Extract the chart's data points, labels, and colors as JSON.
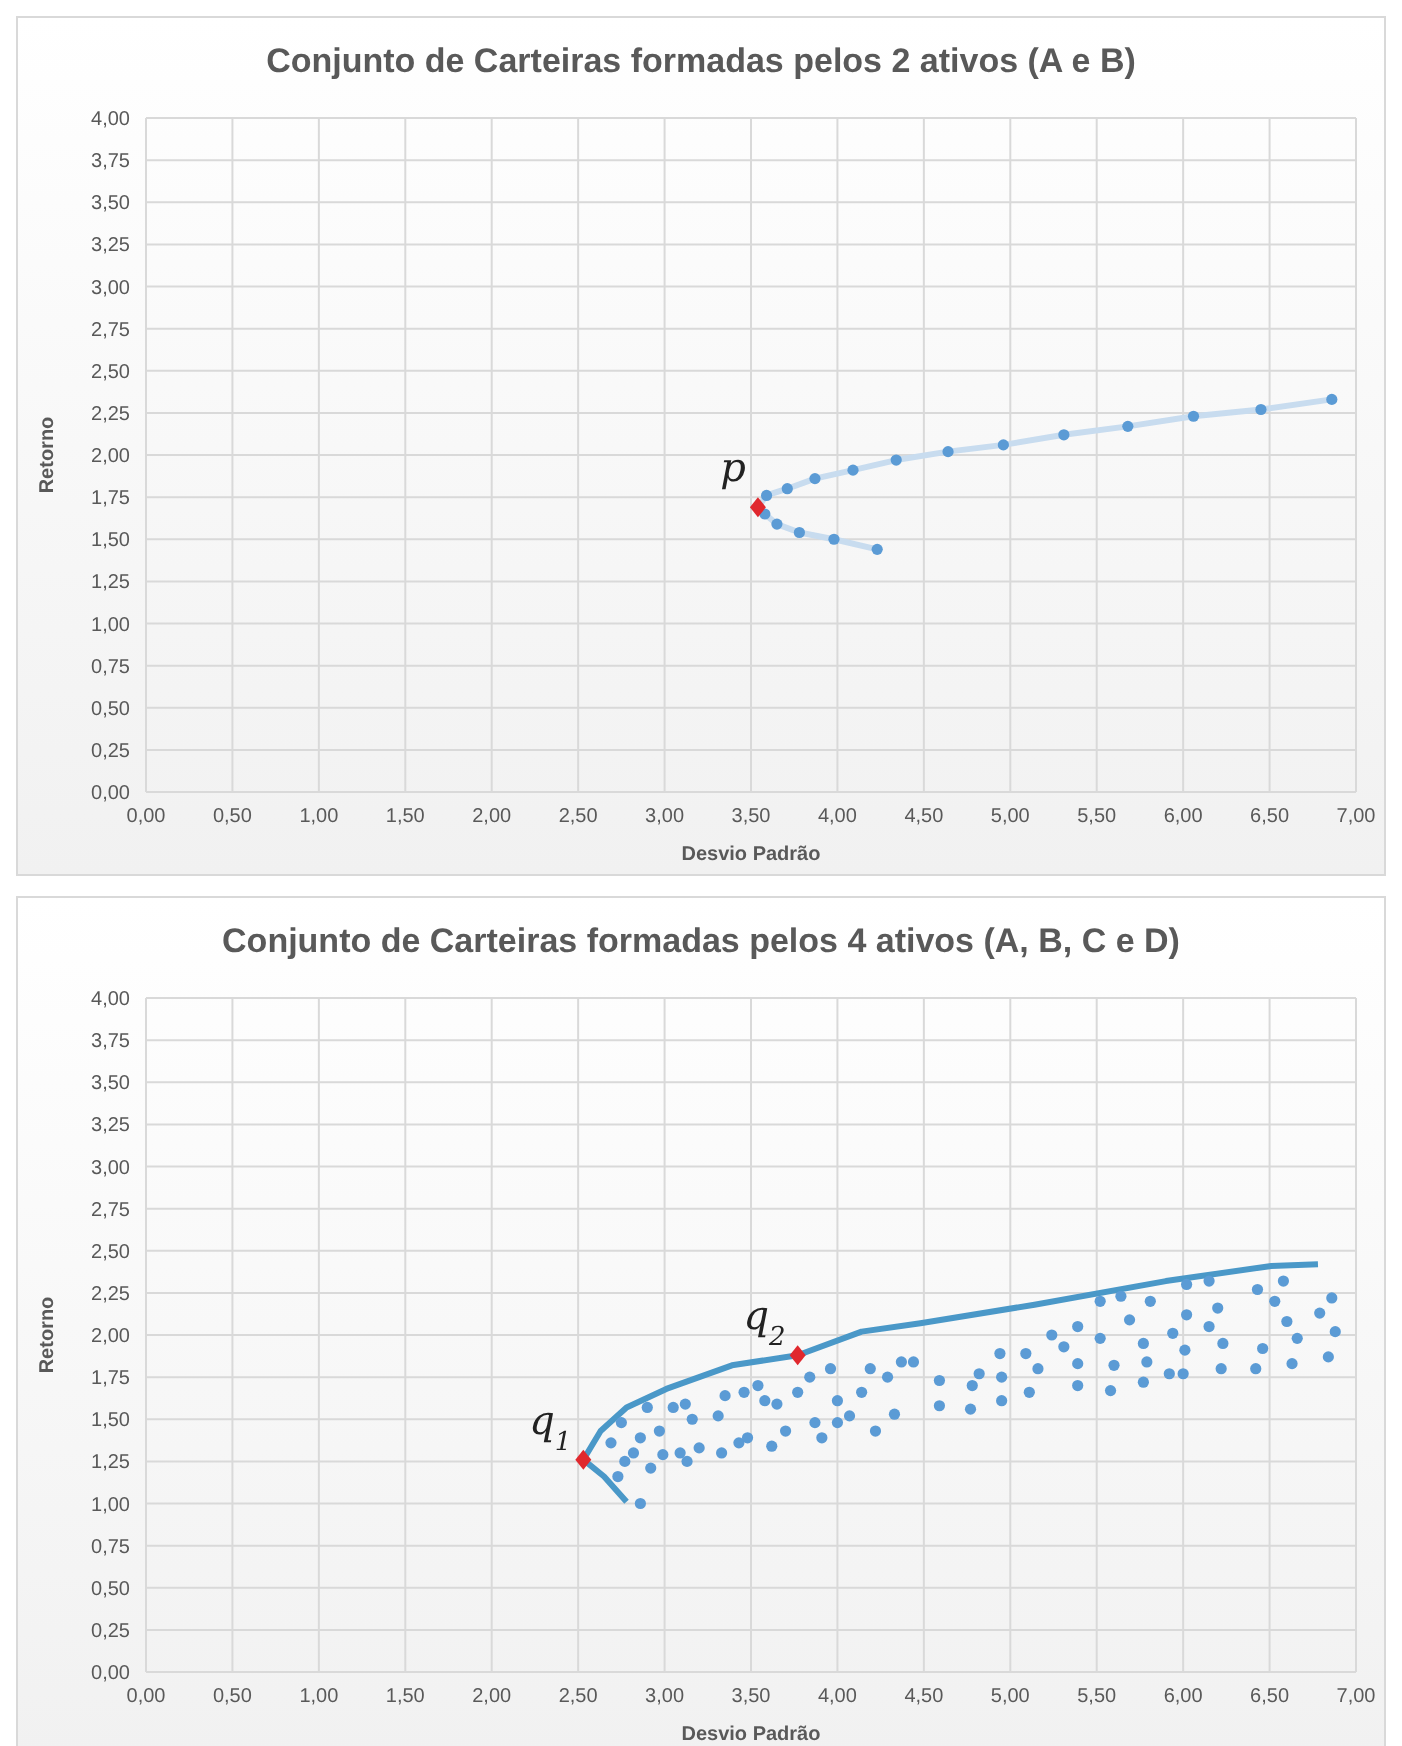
{
  "chart_data": [
    {
      "type": "scatter",
      "title": "Conjunto de Carteiras formadas pelos 2 ativos (A e B)",
      "xlabel": "Desvio Padrão",
      "ylabel": "Retorno",
      "xlim": [
        0,
        7
      ],
      "ylim": [
        0,
        4
      ],
      "grid": true,
      "xticks": [
        {
          "value": 0,
          "label": "0,00"
        },
        {
          "value": 0.5,
          "label": "0,50"
        },
        {
          "value": 1,
          "label": "1,00"
        },
        {
          "value": 1.5,
          "label": "1,50"
        },
        {
          "value": 2,
          "label": "2,00"
        },
        {
          "value": 2.5,
          "label": "2,50"
        },
        {
          "value": 3,
          "label": "3,00"
        },
        {
          "value": 3.5,
          "label": "3,50"
        },
        {
          "value": 4,
          "label": "4,00"
        },
        {
          "value": 4.5,
          "label": "4,50"
        },
        {
          "value": 5,
          "label": "5,00"
        },
        {
          "value": 5.5,
          "label": "5,50"
        },
        {
          "value": 6,
          "label": "6,00"
        },
        {
          "value": 6.5,
          "label": "6,50"
        },
        {
          "value": 7,
          "label": "7,00"
        }
      ],
      "yticks": [
        {
          "value": 0,
          "label": "0,00"
        },
        {
          "value": 0.25,
          "label": "0,25"
        },
        {
          "value": 0.5,
          "label": "0,50"
        },
        {
          "value": 0.75,
          "label": "0,75"
        },
        {
          "value": 1,
          "label": "1,00"
        },
        {
          "value": 1.25,
          "label": "1,25"
        },
        {
          "value": 1.5,
          "label": "1,50"
        },
        {
          "value": 1.75,
          "label": "1,75"
        },
        {
          "value": 2,
          "label": "2,00"
        },
        {
          "value": 2.25,
          "label": "2,25"
        },
        {
          "value": 2.5,
          "label": "2,50"
        },
        {
          "value": 2.75,
          "label": "2,75"
        },
        {
          "value": 3,
          "label": "3,00"
        },
        {
          "value": 3.25,
          "label": "3,25"
        },
        {
          "value": 3.5,
          "label": "3,50"
        },
        {
          "value": 3.75,
          "label": "3,75"
        },
        {
          "value": 4,
          "label": "4,00"
        }
      ],
      "series": [
        {
          "type": "line",
          "color": "#c8dcef",
          "marker": "none",
          "x": [
            4.23,
            3.98,
            3.78,
            3.65,
            3.58,
            3.54,
            3.59,
            3.71,
            3.87,
            4.09,
            4.34,
            4.64,
            4.96,
            5.31,
            5.68,
            6.06,
            6.45,
            6.86
          ],
          "values": [
            1.44,
            1.5,
            1.54,
            1.59,
            1.65,
            1.69,
            1.76,
            1.8,
            1.86,
            1.91,
            1.97,
            2.02,
            2.06,
            2.12,
            2.17,
            2.23,
            2.27,
            2.33
          ]
        },
        {
          "color": "#5b9bd5",
          "marker": "circle",
          "x": [
            4.23,
            3.98,
            3.78,
            3.65,
            3.58,
            3.59,
            3.71,
            3.87,
            4.09,
            4.34,
            4.64,
            4.96,
            5.31,
            5.68,
            6.06,
            6.45,
            6.86
          ],
          "values": [
            1.44,
            1.5,
            1.54,
            1.59,
            1.65,
            1.76,
            1.8,
            1.86,
            1.91,
            1.97,
            2.02,
            2.06,
            2.12,
            2.17,
            2.23,
            2.27,
            2.33
          ]
        },
        {
          "color": "#e0282e",
          "marker": "diamond",
          "x": [
            3.54
          ],
          "values": [
            1.69
          ]
        }
      ],
      "annotations": [
        {
          "text": "p",
          "x": 3.54,
          "y": 1.69
        }
      ]
    },
    {
      "type": "scatter",
      "title": "Conjunto de Carteiras formadas pelos 4 ativos (A, B, C e D)",
      "xlabel": "Desvio Padrão",
      "ylabel": "Retorno",
      "xlim": [
        0,
        7
      ],
      "ylim": [
        0,
        4
      ],
      "grid": true,
      "xticks": [
        {
          "value": 0,
          "label": "0,00"
        },
        {
          "value": 0.5,
          "label": "0,50"
        },
        {
          "value": 1,
          "label": "1,00"
        },
        {
          "value": 1.5,
          "label": "1,50"
        },
        {
          "value": 2,
          "label": "2,00"
        },
        {
          "value": 2.5,
          "label": "2,50"
        },
        {
          "value": 3,
          "label": "3,00"
        },
        {
          "value": 3.5,
          "label": "3,50"
        },
        {
          "value": 4,
          "label": "4,00"
        },
        {
          "value": 4.5,
          "label": "4,50"
        },
        {
          "value": 5,
          "label": "5,00"
        },
        {
          "value": 5.5,
          "label": "5,50"
        },
        {
          "value": 6,
          "label": "6,00"
        },
        {
          "value": 6.5,
          "label": "6,50"
        },
        {
          "value": 7,
          "label": "7,00"
        }
      ],
      "yticks": [
        {
          "value": 0,
          "label": "0,00"
        },
        {
          "value": 0.25,
          "label": "0,25"
        },
        {
          "value": 0.5,
          "label": "0,50"
        },
        {
          "value": 0.75,
          "label": "0,75"
        },
        {
          "value": 1,
          "label": "1,00"
        },
        {
          "value": 1.25,
          "label": "1,25"
        },
        {
          "value": 1.5,
          "label": "1,50"
        },
        {
          "value": 1.75,
          "label": "1,75"
        },
        {
          "value": 2,
          "label": "2,00"
        },
        {
          "value": 2.25,
          "label": "2,25"
        },
        {
          "value": 2.5,
          "label": "2,50"
        },
        {
          "value": 2.75,
          "label": "2,75"
        },
        {
          "value": 3,
          "label": "3,00"
        },
        {
          "value": 3.25,
          "label": "3,25"
        },
        {
          "value": 3.5,
          "label": "3,50"
        },
        {
          "value": 3.75,
          "label": "3,75"
        },
        {
          "value": 4,
          "label": "4,00"
        }
      ],
      "series": [
        {
          "color": "#5b9bd5",
          "marker": "circle",
          "x": [
            2.86,
            2.73,
            2.77,
            2.82,
            2.92,
            2.99,
            3.09,
            3.13,
            3.2,
            3.33,
            3.43,
            3.48,
            3.62,
            3.7,
            3.87,
            3.91,
            4.0,
            4.07,
            4.22,
            4.33,
            2.75,
            2.86,
            2.97,
            3.05,
            3.16,
            3.31,
            3.35,
            3.46,
            3.54,
            3.65,
            3.77,
            3.96,
            4.0,
            4.14,
            4.19,
            4.29,
            4.37,
            3.12,
            3.58,
            3.84,
            2.69,
            2.9,
            4.44,
            4.59,
            4.59,
            4.77,
            4.78,
            4.82,
            4.95,
            4.95,
            4.94,
            5.11,
            5.16,
            5.09,
            5.24,
            5.31,
            5.39,
            5.39,
            5.39,
            5.52,
            5.52,
            5.58,
            5.6,
            5.64,
            5.69,
            5.77,
            5.79,
            5.77,
            5.81,
            5.92,
            5.94,
            6.0,
            6.01,
            6.02,
            6.02,
            6.15,
            6.15,
            6.2,
            6.23,
            6.22,
            6.42,
            6.46,
            6.43,
            6.53,
            6.58,
            6.6,
            6.66,
            6.63,
            6.79,
            6.86,
            6.88,
            6.84
          ],
          "values": [
            1.0,
            1.16,
            1.25,
            1.3,
            1.21,
            1.29,
            1.3,
            1.25,
            1.33,
            1.3,
            1.36,
            1.39,
            1.34,
            1.43,
            1.48,
            1.39,
            1.48,
            1.52,
            1.43,
            1.53,
            1.48,
            1.39,
            1.43,
            1.57,
            1.5,
            1.52,
            1.64,
            1.66,
            1.7,
            1.59,
            1.66,
            1.8,
            1.61,
            1.66,
            1.8,
            1.75,
            1.84,
            1.59,
            1.61,
            1.75,
            1.36,
            1.57,
            1.84,
            1.73,
            1.58,
            1.56,
            1.7,
            1.77,
            1.61,
            1.75,
            1.89,
            1.66,
            1.8,
            1.89,
            2.0,
            1.93,
            2.05,
            1.83,
            1.7,
            2.2,
            1.98,
            1.67,
            1.82,
            2.23,
            2.09,
            1.95,
            1.84,
            1.72,
            2.2,
            1.77,
            2.01,
            1.77,
            1.91,
            2.12,
            2.3,
            2.05,
            2.32,
            2.16,
            1.95,
            1.8,
            1.8,
            1.92,
            2.27,
            2.2,
            2.32,
            2.08,
            1.98,
            1.83,
            2.13,
            2.22,
            2.02,
            1.87
          ]
        },
        {
          "type": "line",
          "color": "#4a98c8",
          "marker": "none",
          "x": [
            2.78,
            2.65,
            2.53,
            2.63,
            2.78,
            3.01,
            3.39,
            3.77,
            4.14,
            4.48,
            5.14,
            5.9,
            6.51,
            6.78
          ],
          "values": [
            1.01,
            1.16,
            1.26,
            1.43,
            1.57,
            1.68,
            1.82,
            1.88,
            2.02,
            2.07,
            2.18,
            2.32,
            2.41,
            2.42
          ]
        },
        {
          "color": "#e0282e",
          "marker": "diamond",
          "x": [
            2.53,
            3.77
          ],
          "values": [
            1.26,
            1.88
          ]
        }
      ],
      "annotations": [
        {
          "text": "q$_{1}$",
          "x": 2.53,
          "y": 1.26
        },
        {
          "text": "q$_{2}$",
          "x": 3.77,
          "y": 1.88
        }
      ]
    }
  ]
}
